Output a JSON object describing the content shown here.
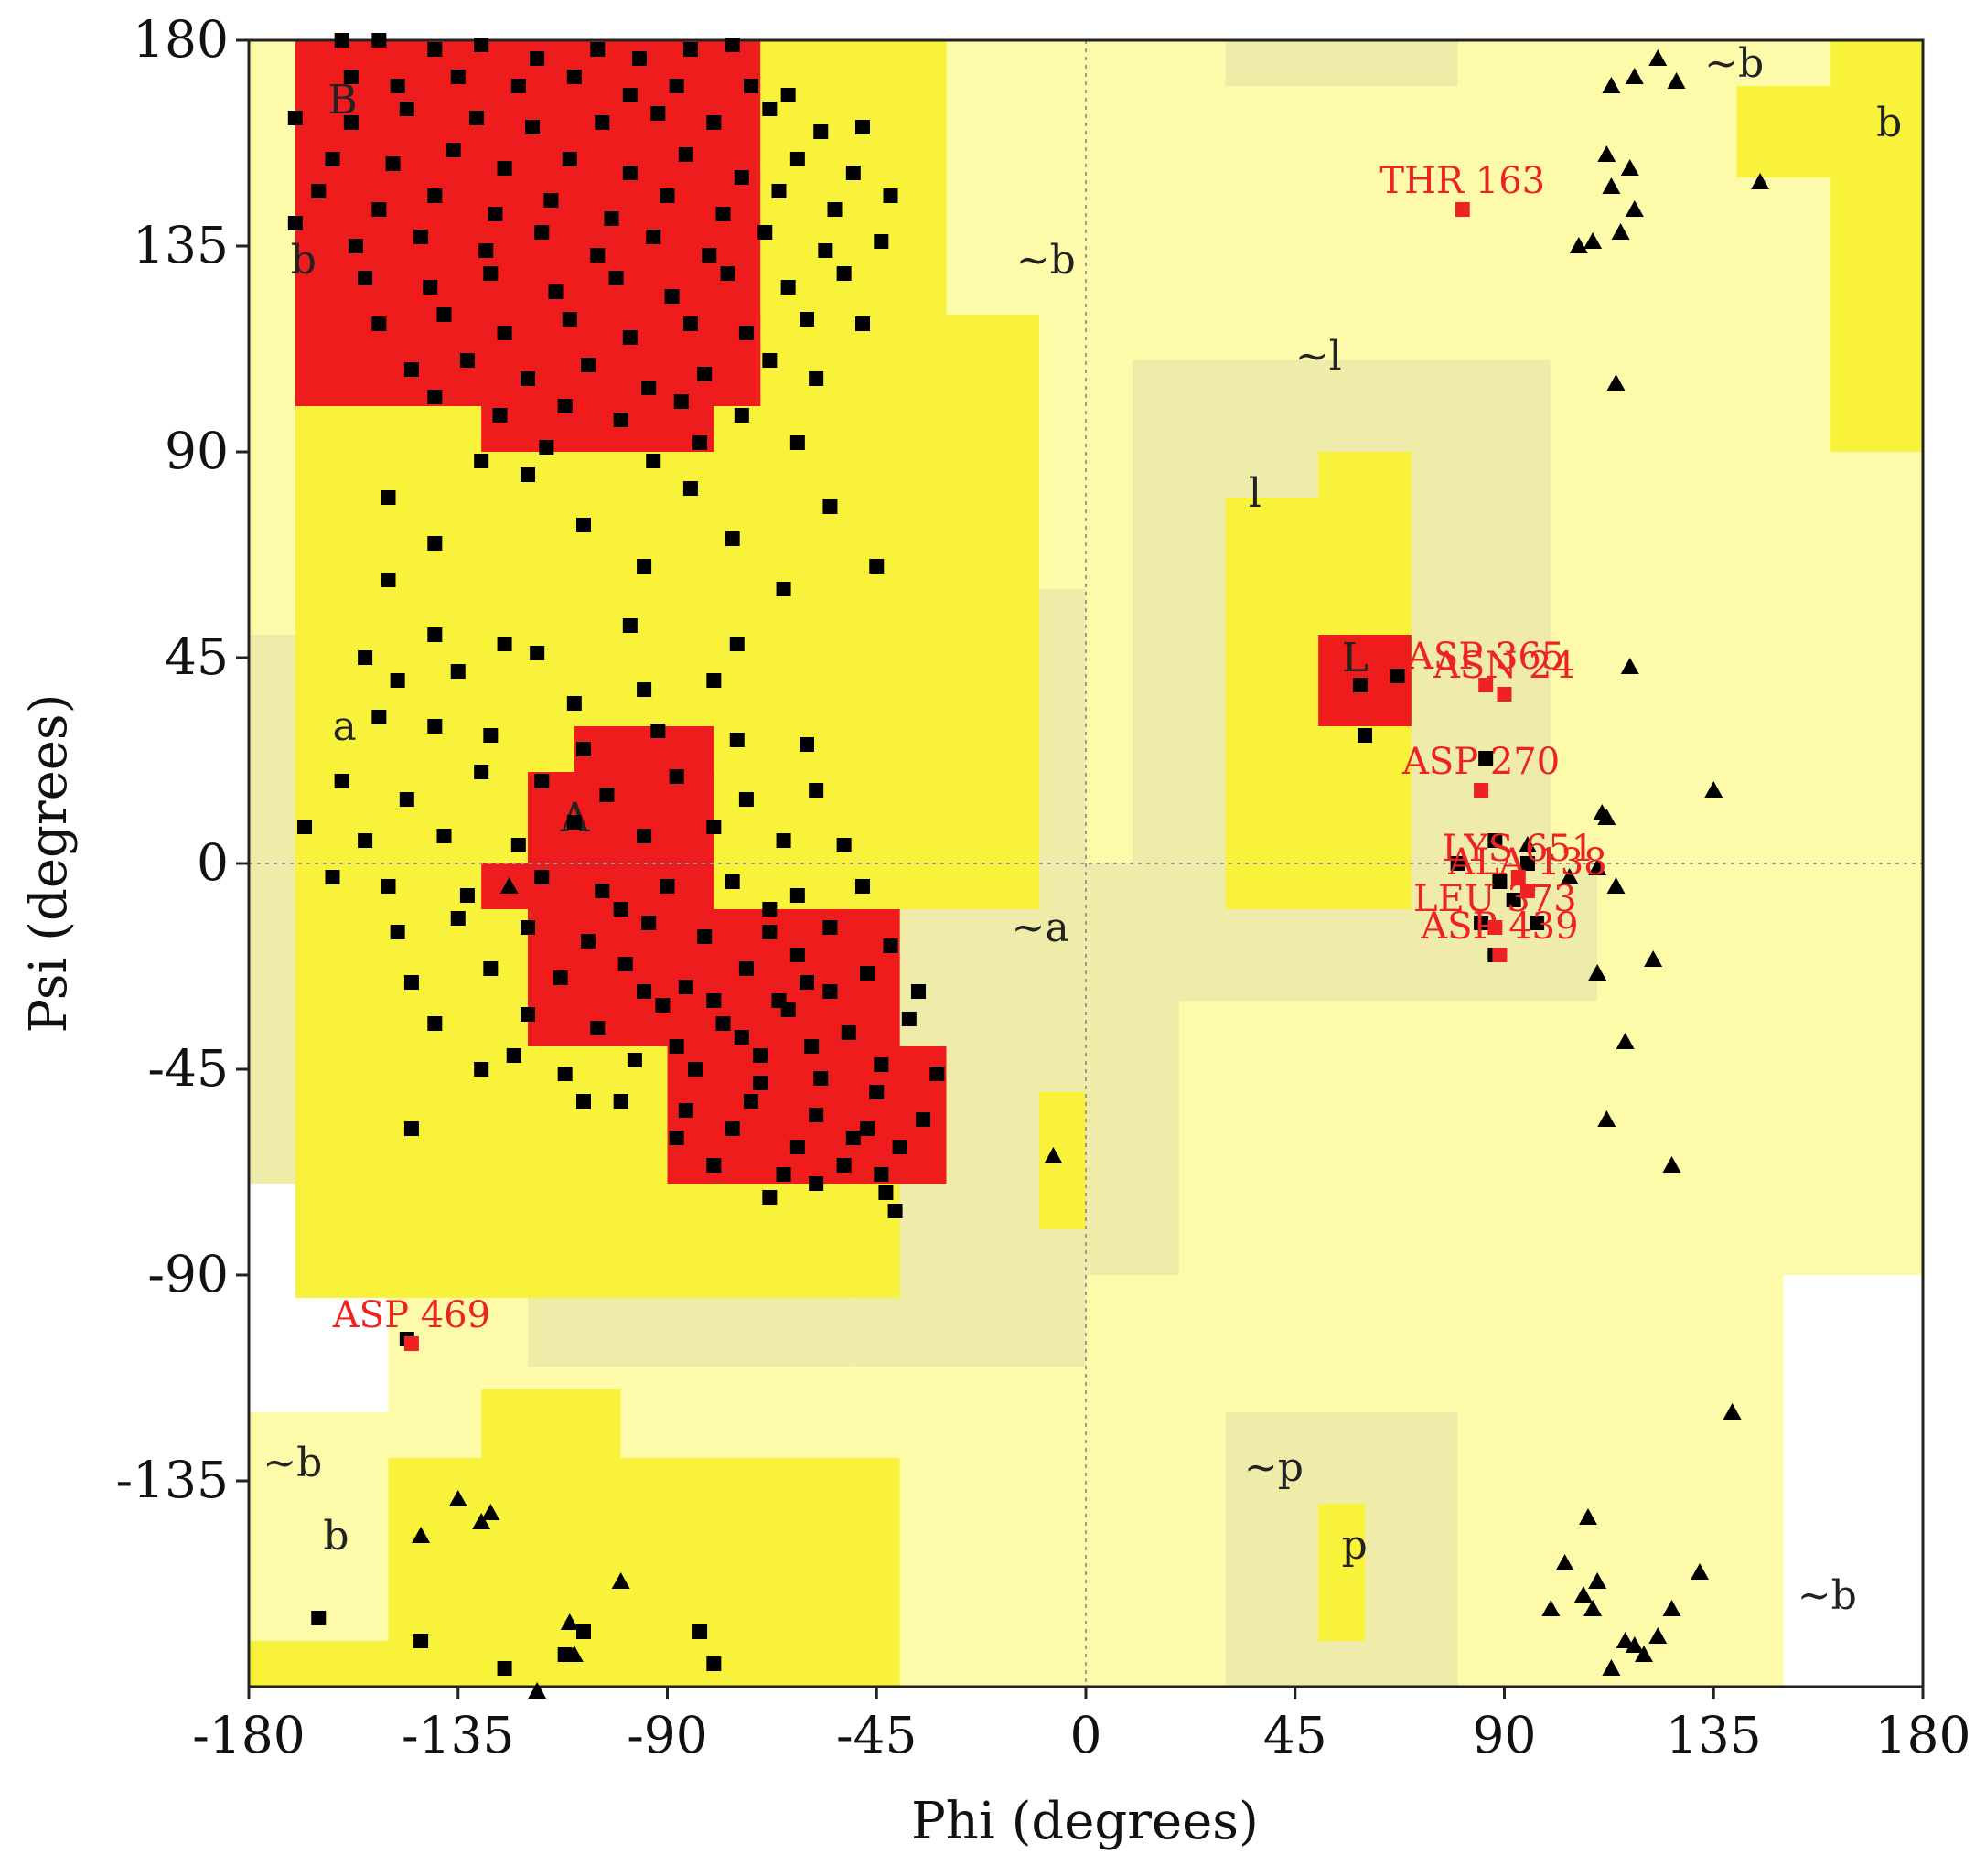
{
  "chart_data": {
    "type": "scatter",
    "title": "",
    "xlabel": "Phi (degrees)",
    "ylabel": "Psi (degrees)",
    "xlim": [
      -180,
      180
    ],
    "ylim": [
      -180,
      180
    ],
    "xticks": [
      "-180",
      "-135",
      "-90",
      "-45",
      "0",
      "45",
      "90",
      "135",
      "180"
    ],
    "yticks": [
      "180",
      "135",
      "90",
      "45",
      "0",
      "-45",
      "-90",
      "-135"
    ],
    "grid": "dotted zero lines",
    "colors": {
      "core": "#ee1c1c",
      "allowed": "#f8f23a",
      "generous": "#fdfaaa",
      "glycine": "#efecaa",
      "point": "#000000",
      "outlier": "#ee2222"
    },
    "region_labels": [
      {
        "text": "B",
        "phi": -163,
        "psi": 164
      },
      {
        "text": "b",
        "phi": -171,
        "psi": 129
      },
      {
        "text": "~b",
        "phi": -15,
        "psi": 129
      },
      {
        "text": "~l",
        "phi": 45,
        "psi": 108
      },
      {
        "text": "l",
        "phi": 35,
        "psi": 78
      },
      {
        "text": "L",
        "phi": 55,
        "psi": 42
      },
      {
        "text": "a",
        "phi": -162,
        "psi": 27
      },
      {
        "text": "A",
        "phi": -113,
        "psi": 7
      },
      {
        "text": "~a",
        "phi": -16,
        "psi": -17
      },
      {
        "text": "~b",
        "phi": 133,
        "psi": 172
      },
      {
        "text": "b",
        "phi": 170,
        "psi": 159
      },
      {
        "text": "~b",
        "phi": -177,
        "psi": -134
      },
      {
        "text": "b",
        "phi": -164,
        "psi": -150
      },
      {
        "text": "~p",
        "phi": 34,
        "psi": -135
      },
      {
        "text": "p",
        "phi": 55,
        "psi": -152
      },
      {
        "text": "~b",
        "phi": 153,
        "psi": -163
      }
    ],
    "series": [
      {
        "marker": "square",
        "points_general": [
          [
            -160,
            180
          ],
          [
            -152,
            180
          ],
          [
            -140,
            178
          ],
          [
            -130,
            179
          ],
          [
            -118,
            176
          ],
          [
            -105,
            178
          ],
          [
            -96,
            176
          ],
          [
            -85,
            178
          ],
          [
            -76,
            179
          ],
          [
            -158,
            172
          ],
          [
            -148,
            170
          ],
          [
            -135,
            172
          ],
          [
            -122,
            170
          ],
          [
            -110,
            172
          ],
          [
            -98,
            168
          ],
          [
            -88,
            170
          ],
          [
            -72,
            170
          ],
          [
            -64,
            168
          ],
          [
            -170,
            163
          ],
          [
            -158,
            162
          ],
          [
            -146,
            165
          ],
          [
            -131,
            163
          ],
          [
            -119,
            161
          ],
          [
            -104,
            162
          ],
          [
            -92,
            164
          ],
          [
            -80,
            162
          ],
          [
            -68,
            165
          ],
          [
            -57,
            160
          ],
          [
            -48,
            161
          ],
          [
            -162,
            154
          ],
          [
            -149,
            153
          ],
          [
            -136,
            156
          ],
          [
            -125,
            152
          ],
          [
            -111,
            154
          ],
          [
            -98,
            151
          ],
          [
            -86,
            155
          ],
          [
            -74,
            150
          ],
          [
            -62,
            154
          ],
          [
            -50,
            151
          ],
          [
            -165,
            147
          ],
          [
            -152,
            143
          ],
          [
            -140,
            146
          ],
          [
            -127,
            142
          ],
          [
            -115,
            145
          ],
          [
            -102,
            141
          ],
          [
            -90,
            146
          ],
          [
            -78,
            142
          ],
          [
            -66,
            147
          ],
          [
            -54,
            143
          ],
          [
            -42,
            146
          ],
          [
            -170,
            140
          ],
          [
            -157,
            135
          ],
          [
            -143,
            137
          ],
          [
            -129,
            134
          ],
          [
            -117,
            138
          ],
          [
            -105,
            133
          ],
          [
            -93,
            137
          ],
          [
            -81,
            133
          ],
          [
            -69,
            138
          ],
          [
            -56,
            134
          ],
          [
            -44,
            136
          ],
          [
            -155,
            128
          ],
          [
            -141,
            126
          ],
          [
            -128,
            129
          ],
          [
            -114,
            125
          ],
          [
            -101,
            128
          ],
          [
            -89,
            124
          ],
          [
            -77,
            129
          ],
          [
            -64,
            126
          ],
          [
            -52,
            129
          ],
          [
            -152,
            118
          ],
          [
            -138,
            120
          ],
          [
            -125,
            116
          ],
          [
            -111,
            119
          ],
          [
            -98,
            115
          ],
          [
            -85,
            118
          ],
          [
            -73,
            116
          ],
          [
            -60,
            119
          ],
          [
            -48,
            118
          ],
          [
            -145,
            108
          ],
          [
            -133,
            110
          ],
          [
            -120,
            106
          ],
          [
            -107,
            109
          ],
          [
            -94,
            104
          ],
          [
            -82,
            107
          ],
          [
            -68,
            110
          ],
          [
            -58,
            106
          ],
          [
            -140,
            102
          ],
          [
            -126,
            98
          ],
          [
            -112,
            100
          ],
          [
            -100,
            97
          ],
          [
            -87,
            101
          ],
          [
            -74,
            98
          ],
          [
            -130,
            88
          ],
          [
            -116,
            91
          ],
          [
            -93,
            88
          ],
          [
            -83,
            92
          ],
          [
            -62,
            92
          ],
          [
            -150,
            80
          ],
          [
            -120,
            85
          ],
          [
            -85,
            82
          ],
          [
            -55,
            78
          ],
          [
            -140,
            70
          ],
          [
            -108,
            74
          ],
          [
            -76,
            71
          ],
          [
            -45,
            65
          ],
          [
            -150,
            62
          ],
          [
            -95,
            65
          ],
          [
            -65,
            60
          ],
          [
            -140,
            50
          ],
          [
            -125,
            48
          ],
          [
            -98,
            52
          ],
          [
            -75,
            48
          ],
          [
            -155,
            45
          ],
          [
            -148,
            40
          ],
          [
            -135,
            42
          ],
          [
            -118,
            46
          ],
          [
            -110,
            35
          ],
          [
            -95,
            38
          ],
          [
            -80,
            40
          ],
          [
            -152,
            32
          ],
          [
            -140,
            30
          ],
          [
            -128,
            28
          ],
          [
            -108,
            25
          ],
          [
            -92,
            29
          ],
          [
            -75,
            27
          ],
          [
            -60,
            26
          ],
          [
            -160,
            18
          ],
          [
            -146,
            14
          ],
          [
            -130,
            20
          ],
          [
            -117,
            18
          ],
          [
            -103,
            15
          ],
          [
            -88,
            19
          ],
          [
            -73,
            14
          ],
          [
            -58,
            16
          ],
          [
            -168,
            8
          ],
          [
            -155,
            5
          ],
          [
            -138,
            6
          ],
          [
            -122,
            4
          ],
          [
            -110,
            9
          ],
          [
            -95,
            6
          ],
          [
            -80,
            8
          ],
          [
            -65,
            5
          ],
          [
            -52,
            4
          ],
          [
            -162,
            -3
          ],
          [
            -150,
            -5
          ],
          [
            -133,
            -7
          ],
          [
            -117,
            -3
          ],
          [
            -104,
            -6
          ],
          [
            -90,
            -5
          ],
          [
            -76,
            -4
          ],
          [
            -62,
            -7
          ],
          [
            -48,
            -5
          ],
          [
            -148,
            -15
          ],
          [
            -135,
            -12
          ],
          [
            -120,
            -14
          ],
          [
            -107,
            -17
          ],
          [
            -94,
            -13
          ],
          [
            -82,
            -16
          ],
          [
            -68,
            -15
          ],
          [
            -55,
            -14
          ],
          [
            -42,
            -18
          ],
          [
            -145,
            -26
          ],
          [
            -128,
            -23
          ],
          [
            -113,
            -25
          ],
          [
            -99,
            -22
          ],
          [
            -86,
            -27
          ],
          [
            -73,
            -23
          ],
          [
            -60,
            -26
          ],
          [
            -47,
            -24
          ],
          [
            -36,
            -28
          ],
          [
            -140,
            -35
          ],
          [
            -120,
            -33
          ],
          [
            -105,
            -36
          ],
          [
            -91,
            -31
          ],
          [
            -78,
            -35
          ],
          [
            -64,
            -32
          ],
          [
            -51,
            -37
          ],
          [
            -38,
            -34
          ],
          [
            -130,
            -45
          ],
          [
            -112,
            -46
          ],
          [
            -97,
            -43
          ],
          [
            -84,
            -45
          ],
          [
            -70,
            -42
          ],
          [
            -57,
            -47
          ],
          [
            -44,
            -44
          ],
          [
            -32,
            -46
          ],
          [
            -100,
            -52
          ],
          [
            -86,
            -54
          ],
          [
            -72,
            -52
          ],
          [
            -58,
            -55
          ],
          [
            -45,
            -50
          ],
          [
            -35,
            -56
          ],
          [
            -88,
            -60
          ],
          [
            -76,
            -58
          ],
          [
            -62,
            -62
          ],
          [
            -50,
            -60
          ],
          [
            -40,
            -62
          ],
          [
            -80,
            -66
          ],
          [
            -65,
            -68
          ],
          [
            -52,
            -66
          ],
          [
            -43,
            -72
          ],
          [
            -145,
            -58
          ],
          [
            -108,
            -52
          ],
          [
            -123,
            -42
          ],
          [
            -74,
            -38
          ],
          [
            -66,
            -30
          ],
          [
            -59,
            -40
          ],
          [
            -70,
            -48
          ],
          [
            -80,
            -30
          ],
          [
            -88,
            -40
          ],
          [
            -95,
            -28
          ],
          [
            -62,
            -20
          ],
          [
            -55,
            -28
          ],
          [
            -68,
            -10
          ],
          [
            -100,
            -10
          ],
          [
            -44,
            -68
          ],
          [
            -47,
            -58
          ],
          [
            -58,
            -70
          ],
          [
            -68,
            -73
          ],
          [
            -41,
            -76
          ],
          [
            -165,
            -165
          ],
          [
            -143,
            -170
          ],
          [
            -125,
            -176
          ],
          [
            -112,
            -173
          ],
          [
            -80,
            -175
          ],
          [
            -108,
            -168
          ],
          [
            -83,
            -168
          ],
          [
            -146,
            -104
          ],
          [
            59,
            39
          ],
          [
            67,
            41
          ],
          [
            86,
            23
          ],
          [
            80,
            0
          ],
          [
            89,
            -4
          ],
          [
            92,
            -8
          ],
          [
            88,
            5
          ],
          [
            95,
            0
          ],
          [
            60,
            28
          ],
          [
            97,
            -13
          ],
          [
            88,
            -20
          ],
          [
            85,
            -13
          ]
        ]
      },
      {
        "marker": "triangle",
        "points_gly": [
          [
            123,
            176
          ],
          [
            118,
            172
          ],
          [
            113,
            170
          ],
          [
            127,
            171
          ],
          [
            112,
            155
          ],
          [
            117,
            152
          ],
          [
            113,
            148
          ],
          [
            118,
            143
          ],
          [
            109,
            136
          ],
          [
            115,
            138
          ],
          [
            106,
            135
          ],
          [
            145,
            149
          ],
          [
            114,
            105
          ],
          [
            117,
            43
          ],
          [
            135,
            16
          ],
          [
            111,
            11
          ],
          [
            112,
            10
          ],
          [
            95,
            4
          ],
          [
            104,
            -3
          ],
          [
            110,
            -1
          ],
          [
            114,
            -5
          ],
          [
            110,
            -24
          ],
          [
            122,
            -21
          ],
          [
            116,
            -39
          ],
          [
            112,
            -56
          ],
          [
            126,
            -66
          ],
          [
            -7,
            -64
          ],
          [
            -124,
            -5
          ],
          [
            -135,
            -139
          ],
          [
            -130,
            -144
          ],
          [
            -128,
            -142
          ],
          [
            -143,
            -147
          ],
          [
            -100,
            -157
          ],
          [
            -111,
            -166
          ],
          [
            -110,
            -173
          ],
          [
            -118,
            -181
          ],
          [
            116,
            -170
          ],
          [
            120,
            -173
          ],
          [
            118,
            -171
          ],
          [
            113,
            -176
          ],
          [
            123,
            -169
          ],
          [
            126,
            -163
          ],
          [
            132,
            -155
          ],
          [
            109,
            -163
          ],
          [
            107,
            -160
          ],
          [
            110,
            -157
          ],
          [
            103,
            -153
          ],
          [
            139,
            -120
          ],
          [
            108,
            -143
          ],
          [
            100,
            -163
          ]
        ]
      }
    ],
    "outliers": [
      {
        "label": "THR 163",
        "phi": 81,
        "psi": 143
      },
      {
        "label": "ASP 365",
        "phi": 86,
        "psi": 39
      },
      {
        "label": "ASN 24",
        "phi": 90,
        "psi": 37
      },
      {
        "label": "ASP 270",
        "phi": 85,
        "psi": 16
      },
      {
        "label": "LYS 651",
        "phi": 93,
        "psi": -3
      },
      {
        "label": "ALA 138",
        "phi": 95,
        "psi": -6
      },
      {
        "label": "LEU 373",
        "phi": 88,
        "psi": -14
      },
      {
        "label": "ASP 439",
        "phi": 89,
        "psi": -20
      },
      {
        "label": "ASP 469",
        "phi": -145,
        "psi": -105
      }
    ]
  }
}
